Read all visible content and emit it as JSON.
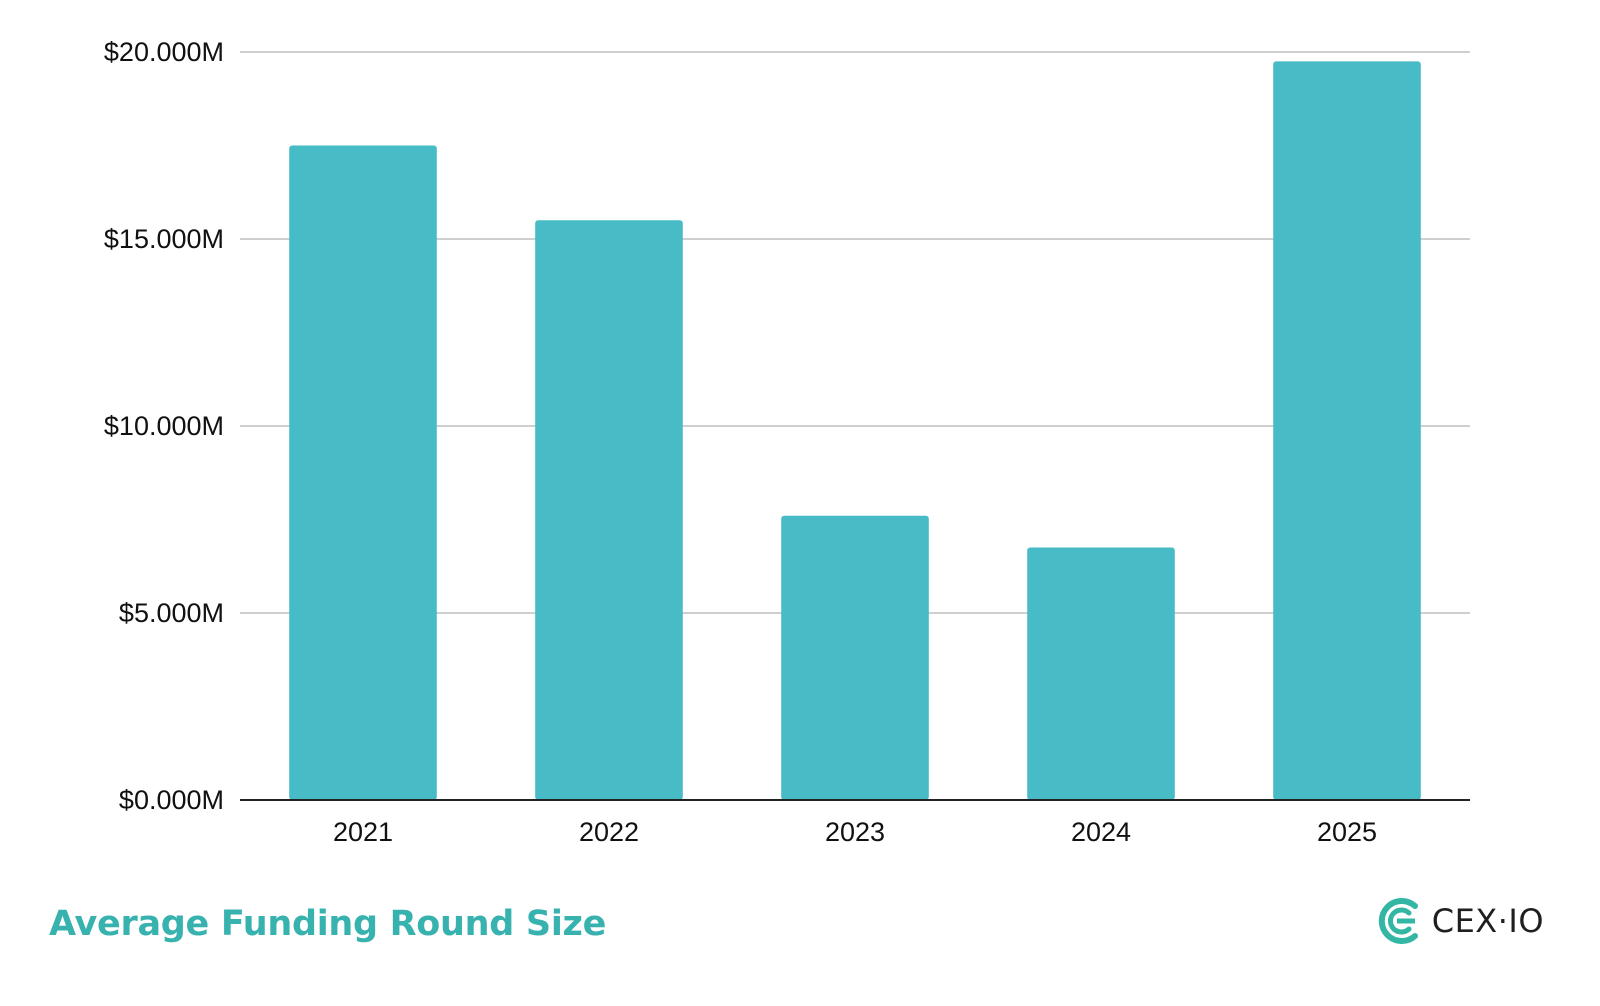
{
  "colors": {
    "bar": "#47bbc6",
    "title": "#38b2ae",
    "grid": "#cfcfcf",
    "axis": "#222222",
    "logo": "#33b7a4"
  },
  "footer": {
    "title": "Average Funding Round Size"
  },
  "brand": {
    "name": "CEX·IO",
    "logo_icon": "cex-io-logo-icon"
  },
  "chart_data": {
    "type": "bar",
    "title": "Average Funding Round Size",
    "xlabel": "",
    "ylabel": "",
    "categories": [
      "2021",
      "2022",
      "2023",
      "2024",
      "2025"
    ],
    "values": [
      17.5,
      15.5,
      7.6,
      6.75,
      19.75
    ],
    "unit": "millions USD",
    "ylim": [
      0,
      20
    ],
    "yticks": [
      0,
      5,
      10,
      15,
      20
    ],
    "ytick_labels": [
      "$0.000M",
      "$5.000M",
      "$10.000M",
      "$15.000M",
      "$20.000M"
    ],
    "grid": true,
    "legend": "none"
  }
}
